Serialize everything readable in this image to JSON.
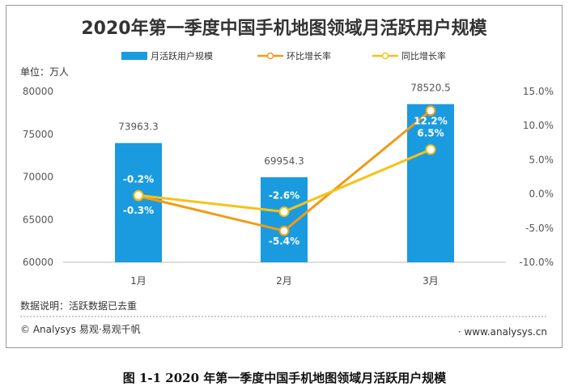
{
  "caption": "图 1-1 2020 年第一季度中国手机地图领域月活跃用户规模",
  "footer": {
    "note": "数据说明：活跃数据已去重",
    "source": "© Analysys 易观·易观千帆",
    "website": "www.analysys.cn"
  },
  "colors": {
    "bar": "#1a9be0",
    "mom": "#f29a14",
    "yoy": "#f5c218",
    "title": "#333333"
  },
  "chart_data": {
    "type": "bar",
    "title": "2020年第一季度中国手机地图领域月活跃用户规模",
    "unit_label": "单位：万人",
    "categories": [
      "1月",
      "2月",
      "3月"
    ],
    "ylim": [
      60000,
      80000
    ],
    "yticks": [
      "60000",
      "65000",
      "70000",
      "75000",
      "80000"
    ],
    "y2lim": [
      -10,
      15
    ],
    "y2ticks": [
      "-10.0%",
      "-5.0%",
      "0.0%",
      "5.0%",
      "10.0%",
      "15.0%"
    ],
    "series": [
      {
        "name": "月活跃用户规模",
        "kind": "bar",
        "axis": "left",
        "values": [
          73963.3,
          69954.3,
          78520.5
        ],
        "labels": [
          "73963.3",
          "69954.3",
          "78520.5"
        ]
      },
      {
        "name": "环比增长率",
        "kind": "line",
        "axis": "right",
        "values": [
          -0.3,
          -5.4,
          12.2
        ],
        "labels": [
          "-0.3%",
          "-5.4%",
          "12.2%"
        ]
      },
      {
        "name": "同比增长率",
        "kind": "line",
        "axis": "right",
        "values": [
          -0.2,
          -2.6,
          6.5
        ],
        "labels": [
          "-0.2%",
          "-2.6%",
          "6.5%"
        ]
      }
    ]
  }
}
